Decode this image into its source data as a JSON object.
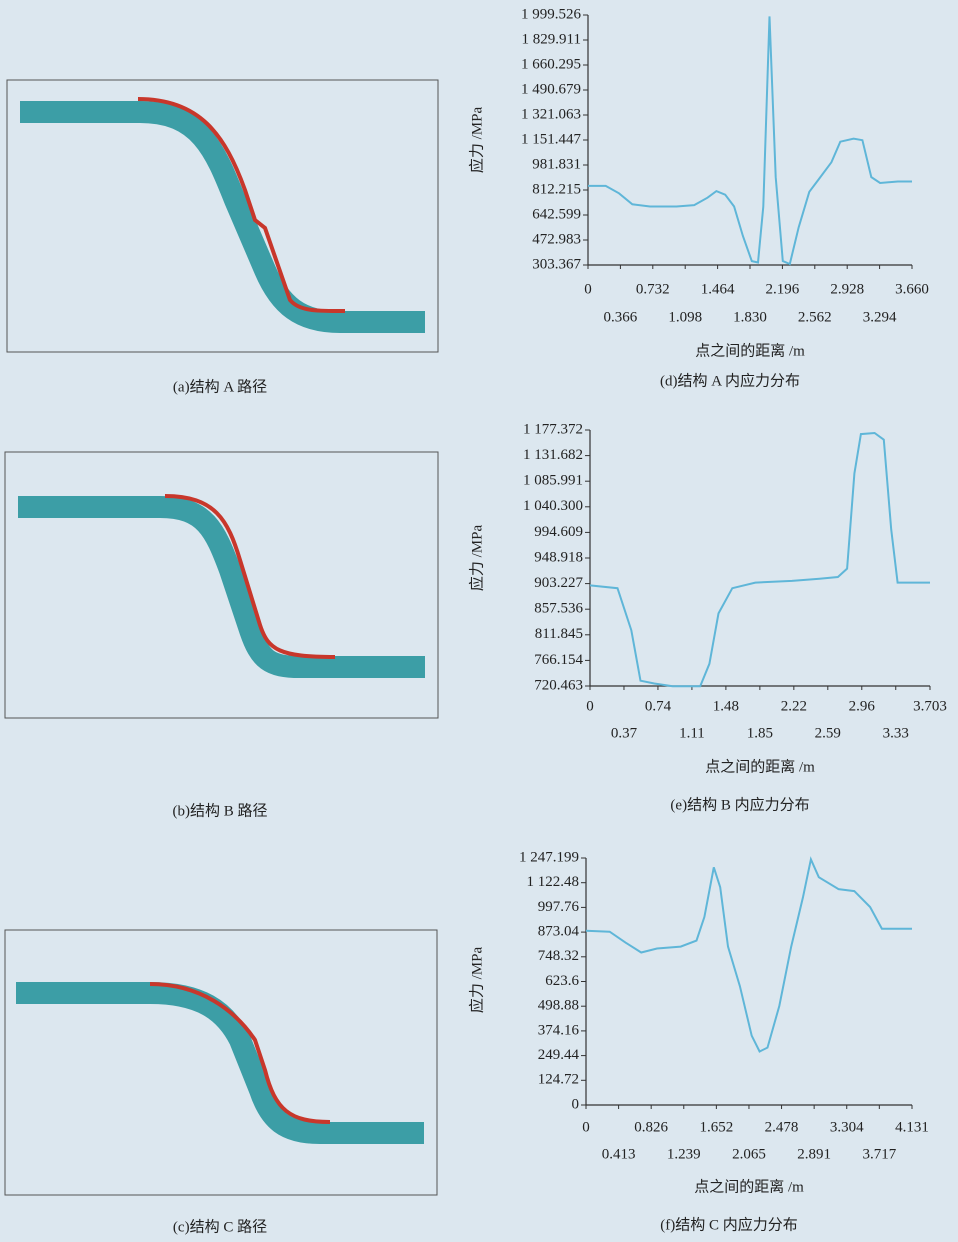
{
  "chart_data": [
    {
      "type": "line",
      "ylabel": "应力 /MPa",
      "xlabel": "点之间的距离 /m",
      "caption": "(d)结构 A 内应力分布",
      "color": "#5fb6d8",
      "xlim": [
        0,
        3.66
      ],
      "ylim": [
        303.367,
        1999.526
      ],
      "xticks": [
        0,
        0.366,
        0.732,
        1.098,
        1.464,
        {
          "value": 1.83,
          "label": "1.830"
        },
        2.196,
        2.562,
        2.928,
        3.294,
        {
          "value": 3.66,
          "label": "3.660"
        }
      ],
      "yticks": [
        303.367,
        472.983,
        642.599,
        812.215,
        981.831,
        {
          "value": 1151.447,
          "label": "1 151.447"
        },
        {
          "value": 1321.063,
          "label": "1 321.063"
        },
        {
          "value": 1490.679,
          "label": "1 490.679"
        },
        {
          "value": 1660.295,
          "label": "1 660.295"
        },
        {
          "value": 1829.911,
          "label": "1 829.911"
        },
        {
          "value": 1999.526,
          "label": "1 999.526"
        }
      ],
      "x": [
        0,
        0.2,
        0.35,
        0.5,
        0.7,
        1.0,
        1.2,
        1.35,
        1.45,
        1.55,
        1.65,
        1.75,
        1.85,
        1.92,
        1.98,
        2.05,
        2.12,
        2.2,
        2.28,
        2.38,
        2.5,
        2.6,
        2.75,
        2.85,
        3.0,
        3.1,
        3.2,
        3.3,
        3.5,
        3.66
      ],
      "values": [
        840,
        840,
        790,
        715,
        700,
        700,
        710,
        760,
        805,
        780,
        700,
        500,
        330,
        320,
        700,
        1990,
        900,
        330,
        310,
        560,
        800,
        880,
        1000,
        1140,
        1160,
        1150,
        900,
        860,
        870,
        870
      ]
    },
    {
      "type": "line",
      "ylabel": "应力 /MPa",
      "xlabel": "点之间的距离 /m",
      "caption": "(e)结构 B 内应力分布",
      "color": "#5fb6d8",
      "xlim": [
        0,
        3.703
      ],
      "ylim": [
        720.463,
        1177.372
      ],
      "xticks": [
        0,
        0.37,
        0.74,
        1.11,
        1.48,
        1.85,
        2.22,
        2.59,
        2.96,
        3.33,
        3.703
      ],
      "yticks": [
        720.463,
        766.154,
        811.845,
        857.536,
        903.227,
        948.918,
        994.609,
        {
          "value": 1040.3,
          "label": "1 040.300"
        },
        {
          "value": 1085.991,
          "label": "1 085.991"
        },
        {
          "value": 1131.682,
          "label": "1 131.682"
        },
        {
          "value": 1177.372,
          "label": "1 177.372"
        }
      ],
      "x": [
        0,
        0.3,
        0.45,
        0.55,
        0.7,
        0.9,
        1.2,
        1.3,
        1.4,
        1.55,
        1.8,
        2.2,
        2.5,
        2.7,
        2.8,
        2.88,
        2.95,
        3.1,
        3.2,
        3.28,
        3.35,
        3.5,
        3.703
      ],
      "values": [
        900,
        895,
        820,
        730,
        725,
        720,
        720,
        760,
        850,
        895,
        905,
        908,
        912,
        915,
        930,
        1100,
        1170,
        1172,
        1160,
        1000,
        905,
        905,
        905
      ]
    },
    {
      "type": "line",
      "ylabel": "应力 /MPa",
      "xlabel": "点之间的距离 /m",
      "caption": "(f)结构 C 内应力分布",
      "color": "#5fb6d8",
      "xlim": [
        0,
        4.131
      ],
      "ylim": [
        0,
        1247.199
      ],
      "xticks": [
        0,
        0.413,
        0.826,
        1.239,
        1.652,
        2.065,
        2.478,
        2.891,
        3.304,
        3.717,
        4.131
      ],
      "yticks": [
        0,
        124.72,
        249.44,
        374.16,
        498.88,
        623.6,
        748.32,
        873.04,
        997.76,
        {
          "value": 1122.48,
          "label": "1 122.48"
        },
        {
          "value": 1247.199,
          "label": "1 247.199"
        }
      ],
      "x": [
        0,
        0.3,
        0.5,
        0.7,
        0.9,
        1.2,
        1.4,
        1.5,
        1.62,
        1.7,
        1.8,
        1.95,
        2.1,
        2.2,
        2.3,
        2.45,
        2.6,
        2.75,
        2.85,
        2.95,
        3.2,
        3.4,
        3.6,
        3.75,
        4.131
      ],
      "values": [
        880,
        875,
        820,
        770,
        790,
        800,
        830,
        950,
        1200,
        1100,
        800,
        600,
        350,
        270,
        290,
        500,
        800,
        1050,
        1240,
        1150,
        1090,
        1080,
        1000,
        890,
        890
      ]
    }
  ],
  "mesh_panels": [
    {
      "caption": "(a)结构 A 路径"
    },
    {
      "caption": "(b)结构 B 路径"
    },
    {
      "caption": "(c)结构 C 路径"
    }
  ]
}
